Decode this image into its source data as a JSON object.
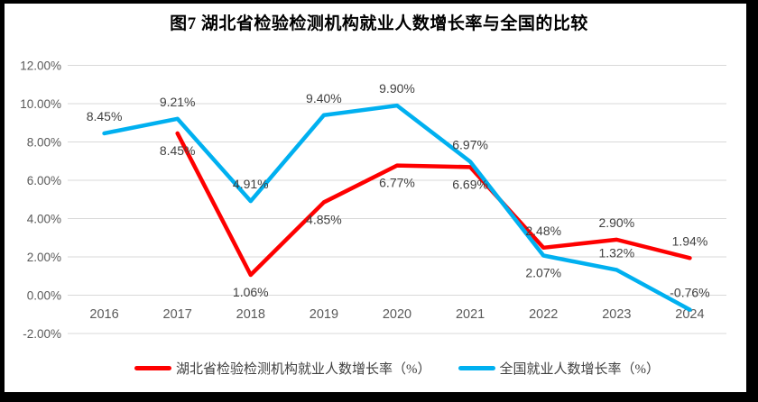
{
  "title": "图7 湖北省检验检测机构就业人数增长率与全国的比较",
  "colors": {
    "frame": "#000000",
    "background": "#ffffff",
    "gridline": "#d9d9d9",
    "axis_text": "#595959",
    "data_label_text": "#404040",
    "hubei_red": "#fe0000",
    "national_blue": "#00b0f0"
  },
  "chart_data": {
    "type": "line",
    "title": "图7 湖北省检验检测机构就业人数增长率与全国的比较",
    "categories": [
      "2016",
      "2017",
      "2018",
      "2019",
      "2020",
      "2021",
      "2022",
      "2023",
      "2024"
    ],
    "series": [
      {
        "name": "湖北省检验检测机构就业人数增长率（%）",
        "color": "#fe0000",
        "values": [
          null,
          8.45,
          1.06,
          4.85,
          6.77,
          6.69,
          2.48,
          2.9,
          1.94
        ],
        "labels": [
          "",
          "8.45%",
          "1.06%",
          "4.85%",
          "6.77%",
          "6.69%",
          "2.48%",
          "2.90%",
          "1.94%"
        ],
        "label_positions": [
          "",
          "below",
          "below",
          "below",
          "below",
          "below",
          "above",
          "above",
          "above"
        ]
      },
      {
        "name": "全国就业人数增长率（%）",
        "color": "#00b0f0",
        "values": [
          8.45,
          9.21,
          4.91,
          9.4,
          9.9,
          6.97,
          2.07,
          1.32,
          -0.76
        ],
        "labels": [
          "8.45%",
          "9.21%",
          "4.91%",
          "9.40%",
          "9.90%",
          "6.97%",
          "2.07%",
          "1.32%",
          "-0.76%"
        ],
        "label_positions": [
          "above",
          "above",
          "above",
          "above",
          "above",
          "above",
          "below",
          "above",
          "above"
        ]
      }
    ],
    "y_axis": {
      "min": -2,
      "max": 12,
      "step": 2,
      "tick_labels": [
        "12.00%",
        "10.00%",
        "8.00%",
        "6.00%",
        "4.00%",
        "2.00%",
        "0.00%",
        "-2.00%"
      ]
    },
    "grid": true,
    "legend_position": "bottom"
  },
  "legend": {
    "items": [
      {
        "label": "湖北省检验检测机构就业人数增长率（%）",
        "color": "#fe0000"
      },
      {
        "label": "全国就业人数增长率（%）",
        "color": "#00b0f0"
      }
    ]
  }
}
